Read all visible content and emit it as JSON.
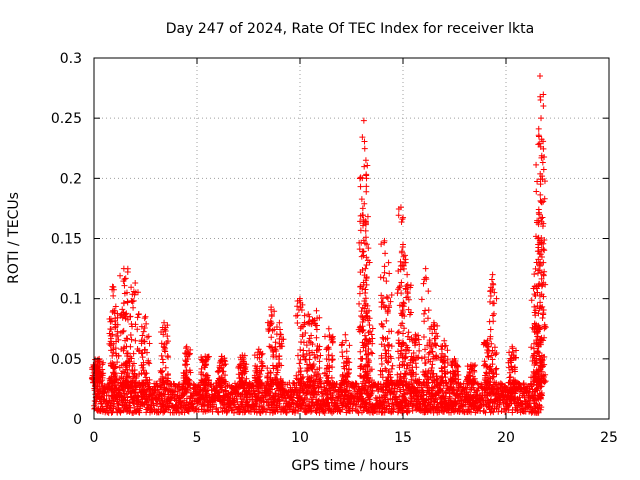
{
  "chart_data": {
    "type": "scatter",
    "title": "Day 247 of 2024, Rate Of TEC Index for receiver lkta",
    "xlabel": "GPS time / hours",
    "ylabel": "ROTI / TECUs",
    "xlim": [
      0,
      25
    ],
    "ylim": [
      0,
      0.3
    ],
    "x_ticks": [
      0,
      5,
      10,
      15,
      20,
      25
    ],
    "x_tick_labels": [
      "0",
      "5",
      "10",
      "15",
      "20",
      "25"
    ],
    "y_ticks": [
      0,
      0.05,
      0.1,
      0.15,
      0.2,
      0.25,
      0.3
    ],
    "y_tick_labels": [
      "0",
      "0.05",
      "0.1",
      "0.15",
      "0.2",
      "0.25",
      "0.3"
    ],
    "grid": true,
    "marker": "+",
    "color": "#ff0000",
    "series": [
      {
        "name": "ROTI",
        "x_range": [
          0,
          21.75
        ],
        "baseline_range": [
          0.005,
          0.03
        ],
        "peaks": [
          {
            "x": 0.1,
            "y": 0.045
          },
          {
            "x": 0.25,
            "y": 0.05
          },
          {
            "x": 0.9,
            "y": 0.11
          },
          {
            "x": 1.0,
            "y": 0.09
          },
          {
            "x": 1.45,
            "y": 0.125
          },
          {
            "x": 1.6,
            "y": 0.105
          },
          {
            "x": 2.0,
            "y": 0.113
          },
          {
            "x": 2.5,
            "y": 0.085
          },
          {
            "x": 3.4,
            "y": 0.08
          },
          {
            "x": 4.5,
            "y": 0.06
          },
          {
            "x": 5.4,
            "y": 0.052
          },
          {
            "x": 6.2,
            "y": 0.052
          },
          {
            "x": 7.2,
            "y": 0.053
          },
          {
            "x": 8.0,
            "y": 0.058
          },
          {
            "x": 8.6,
            "y": 0.093
          },
          {
            "x": 9.0,
            "y": 0.08
          },
          {
            "x": 10.0,
            "y": 0.1
          },
          {
            "x": 10.4,
            "y": 0.087
          },
          {
            "x": 10.8,
            "y": 0.09
          },
          {
            "x": 11.4,
            "y": 0.075
          },
          {
            "x": 12.2,
            "y": 0.07
          },
          {
            "x": 13.1,
            "y": 0.248
          },
          {
            "x": 13.2,
            "y": 0.215
          },
          {
            "x": 13.05,
            "y": 0.175
          },
          {
            "x": 13.35,
            "y": 0.09
          },
          {
            "x": 14.1,
            "y": 0.148
          },
          {
            "x": 14.3,
            "y": 0.13
          },
          {
            "x": 14.9,
            "y": 0.176
          },
          {
            "x": 15.0,
            "y": 0.145
          },
          {
            "x": 15.2,
            "y": 0.12
          },
          {
            "x": 15.6,
            "y": 0.07
          },
          {
            "x": 16.1,
            "y": 0.125
          },
          {
            "x": 16.5,
            "y": 0.08
          },
          {
            "x": 17.0,
            "y": 0.065
          },
          {
            "x": 17.5,
            "y": 0.05
          },
          {
            "x": 18.3,
            "y": 0.045
          },
          {
            "x": 19.1,
            "y": 0.065
          },
          {
            "x": 19.35,
            "y": 0.12
          },
          {
            "x": 20.3,
            "y": 0.06
          },
          {
            "x": 21.4,
            "y": 0.11
          },
          {
            "x": 21.55,
            "y": 0.15
          },
          {
            "x": 21.65,
            "y": 0.285
          },
          {
            "x": 21.7,
            "y": 0.25
          },
          {
            "x": 21.72,
            "y": 0.217
          },
          {
            "x": 21.74,
            "y": 0.18
          }
        ],
        "x": [
          0.0,
          0.5,
          1.0,
          1.5,
          2.0,
          2.5,
          3.0,
          3.5,
          4.0,
          4.5,
          5.0,
          5.5,
          6.0,
          6.5,
          7.0,
          7.5,
          8.0,
          8.5,
          9.0,
          9.5,
          10.0,
          10.5,
          11.0,
          11.5,
          12.0,
          12.5,
          13.0,
          13.5,
          14.0,
          14.5,
          15.0,
          15.5,
          16.0,
          16.5,
          17.0,
          17.5,
          18.0,
          18.5,
          19.0,
          19.5,
          20.0,
          20.5,
          21.0,
          21.5
        ],
        "y_envelope": [
          0.045,
          0.05,
          0.09,
          0.125,
          0.113,
          0.085,
          0.06,
          0.08,
          0.065,
          0.06,
          0.05,
          0.052,
          0.052,
          0.05,
          0.053,
          0.055,
          0.058,
          0.093,
          0.08,
          0.07,
          0.1,
          0.087,
          0.09,
          0.075,
          0.07,
          0.09,
          0.248,
          0.09,
          0.148,
          0.13,
          0.176,
          0.07,
          0.125,
          0.08,
          0.065,
          0.05,
          0.05,
          0.045,
          0.065,
          0.12,
          0.04,
          0.06,
          0.03,
          0.285
        ]
      }
    ]
  }
}
